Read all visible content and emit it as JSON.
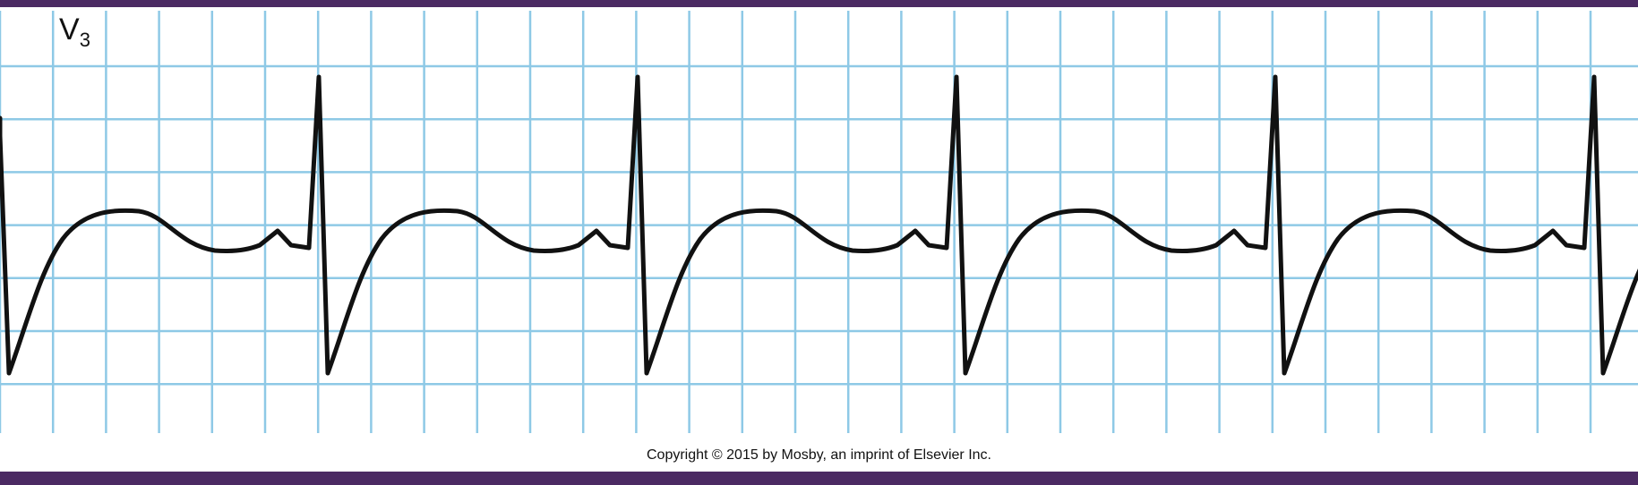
{
  "lead": {
    "name": "V",
    "subscript": "3"
  },
  "copyright": "Copyright © 2015 by Mosby, an imprint of Elsevier Inc.",
  "colors": {
    "frame": "#4b2a63",
    "grid_major": "#8ec9e6",
    "trace": "#111111",
    "paper": "#ffffff"
  }
}
